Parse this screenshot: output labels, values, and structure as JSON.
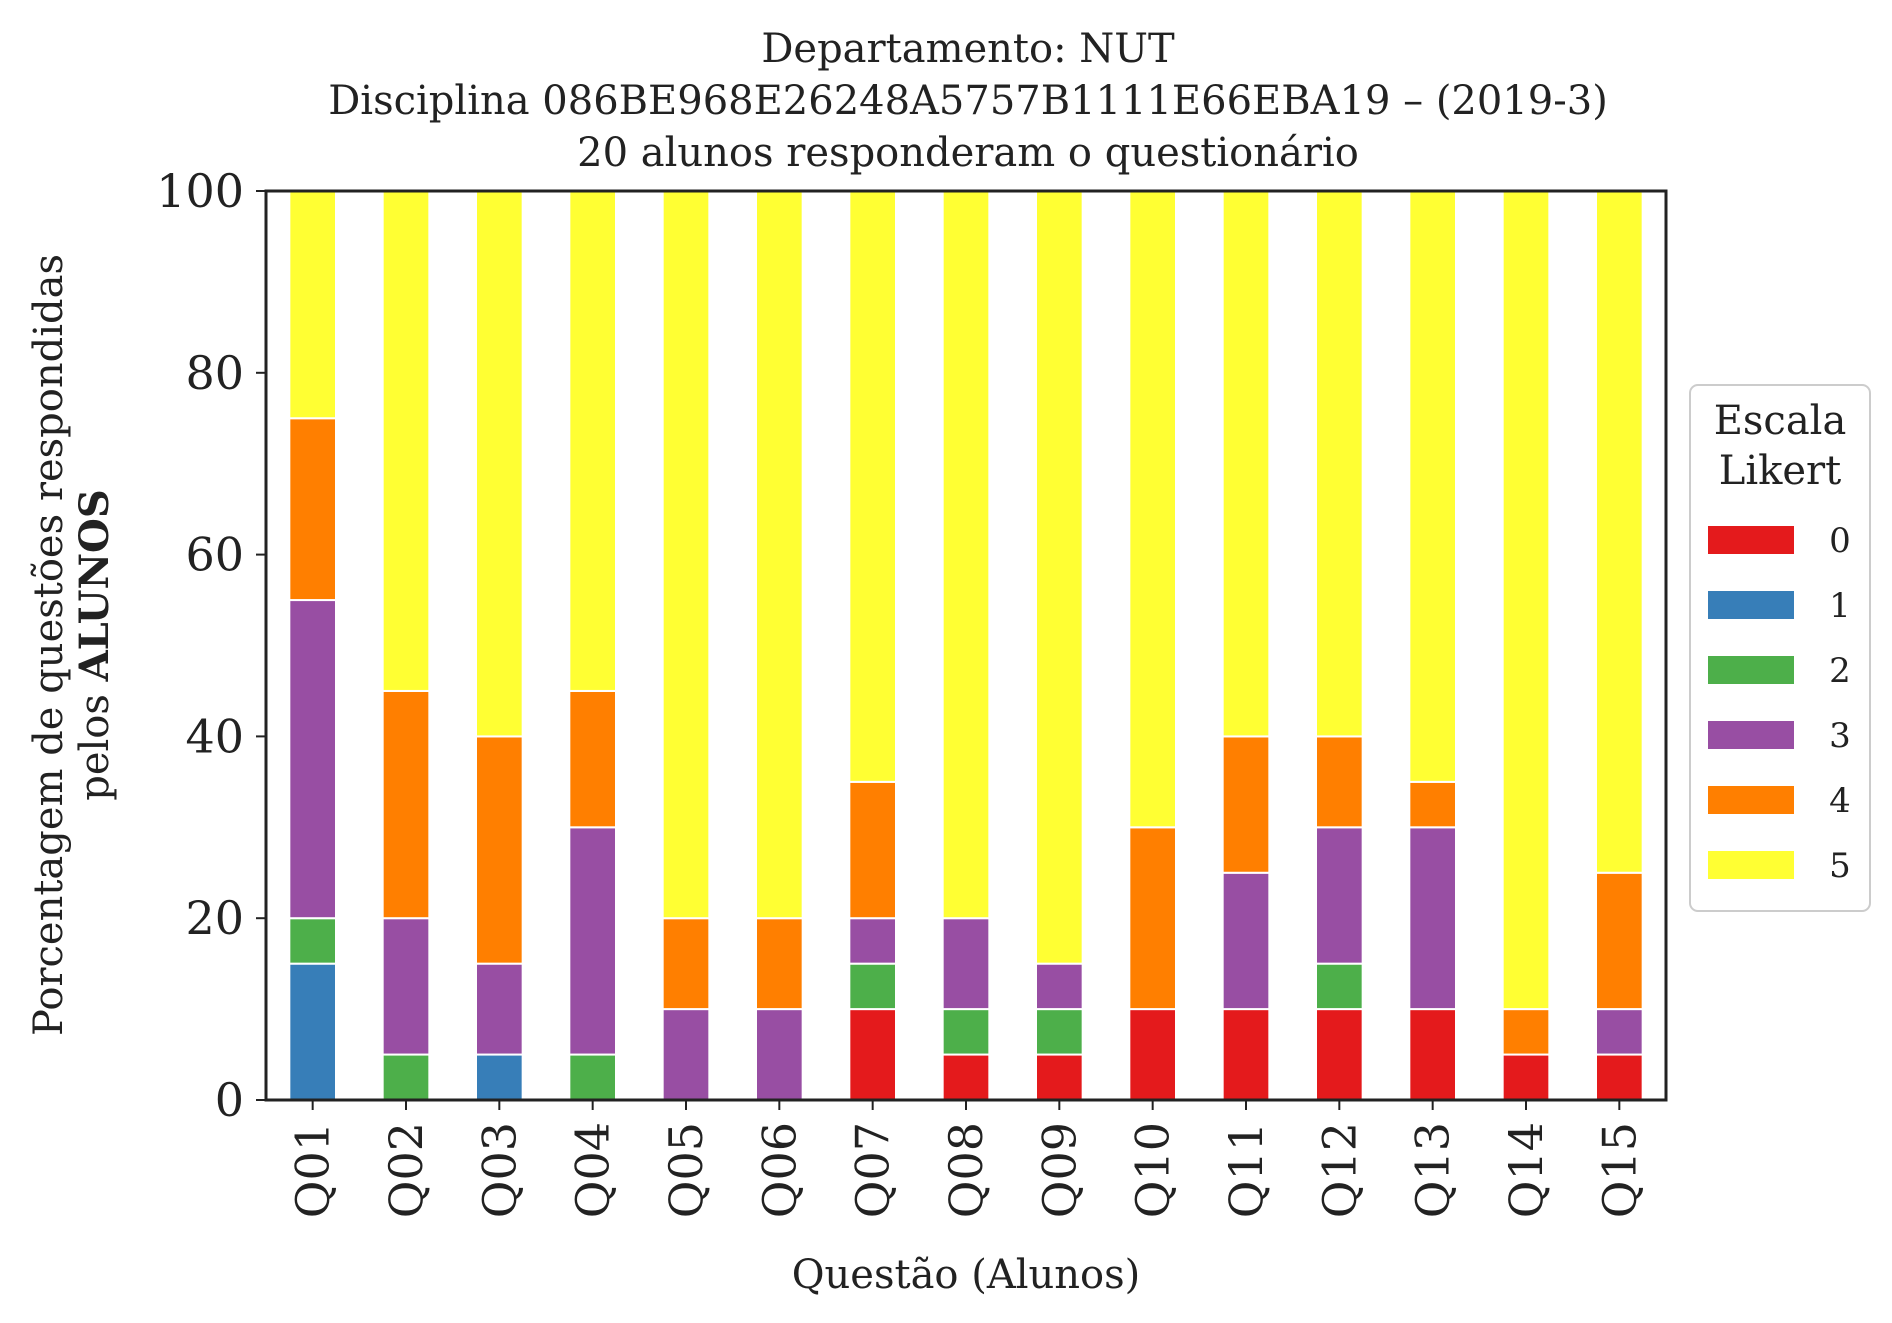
{
  "chart_data": {
    "type": "bar",
    "stacked": true,
    "title_lines": [
      "Departamento: NUT",
      "Disciplina 086BE968E26248A5757B1111E66EBA19 – (2019-3)",
      "20 alunos responderam o questionário"
    ],
    "xlabel": "Questão (Alunos)",
    "ylabel_line1": "Porcentagem de questões respondidas",
    "ylabel_line2_prefix": "pelos ",
    "ylabel_line2_bold": "ALUNOS",
    "ylim": [
      0,
      100
    ],
    "yticks": [
      "0",
      "20",
      "40",
      "60",
      "80",
      "100"
    ],
    "grid": false,
    "legend_position": "right",
    "legend_title_lines": [
      "Escala",
      "Likert"
    ],
    "categories": [
      "Q01",
      "Q02",
      "Q03",
      "Q04",
      "Q05",
      "Q06",
      "Q07",
      "Q08",
      "Q09",
      "Q10",
      "Q11",
      "Q12",
      "Q13",
      "Q14",
      "Q15"
    ],
    "series": [
      {
        "name": "0",
        "color": "#e41a1c",
        "values": [
          0,
          0,
          0,
          0,
          0,
          0,
          10,
          5,
          5,
          10,
          10,
          10,
          10,
          5,
          5
        ]
      },
      {
        "name": "1",
        "color": "#377eb8",
        "values": [
          15,
          0,
          5,
          0,
          0,
          0,
          0,
          0,
          0,
          0,
          0,
          0,
          0,
          0,
          0
        ]
      },
      {
        "name": "2",
        "color": "#4daf4a",
        "values": [
          5,
          5,
          0,
          5,
          0,
          0,
          5,
          5,
          5,
          0,
          0,
          5,
          0,
          0,
          0
        ]
      },
      {
        "name": "3",
        "color": "#984ea3",
        "values": [
          35,
          15,
          10,
          25,
          10,
          10,
          5,
          10,
          5,
          0,
          15,
          15,
          20,
          0,
          5
        ]
      },
      {
        "name": "4",
        "color": "#ff7f00",
        "values": [
          20,
          25,
          25,
          15,
          10,
          10,
          15,
          0,
          0,
          20,
          15,
          10,
          5,
          5,
          15
        ]
      },
      {
        "name": "5",
        "color": "#ffff33",
        "values": [
          25,
          55,
          60,
          55,
          80,
          80,
          65,
          80,
          85,
          70,
          60,
          60,
          65,
          90,
          75
        ]
      }
    ]
  }
}
